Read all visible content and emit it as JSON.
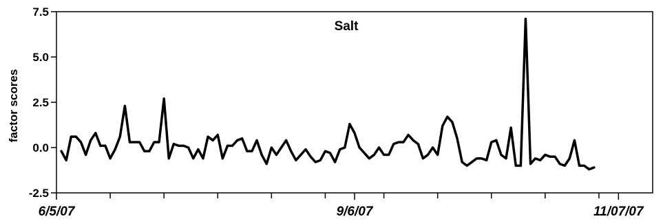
{
  "chart_data": {
    "type": "line",
    "title": "Salt",
    "ylabel": "factor scores",
    "xlabel": "",
    "ylim": [
      -2.5,
      7.5
    ],
    "yticks": [
      {
        "value": 7.5,
        "label": "7.5"
      },
      {
        "value": 5.0,
        "label": "5.0"
      },
      {
        "value": 2.5,
        "label": "2.5"
      },
      {
        "value": 0.0,
        "label": "0.0"
      },
      {
        "value": -2.5,
        "label": "-2.5"
      }
    ],
    "xlim": [
      0,
      122
    ],
    "xticks": [
      {
        "value": 0,
        "label": "6/5/07"
      },
      {
        "value": 61,
        "label": "9/6/07"
      },
      {
        "value": 115,
        "label": "11/07/07"
      }
    ],
    "x_minor_ticks": [
      11,
      22,
      33,
      44,
      55,
      67,
      78,
      89,
      100,
      111
    ],
    "grid": false,
    "line_color": "#000000",
    "series": [
      {
        "values": [
          -0.2,
          -0.7,
          0.6,
          0.6,
          0.3,
          -0.4,
          0.4,
          0.8,
          0.1,
          0.1,
          -0.6,
          -0.1,
          0.6,
          2.3,
          0.3,
          0.3,
          0.3,
          -0.2,
          -0.2,
          0.3,
          0.3,
          2.7,
          -0.6,
          0.2,
          0.1,
          0.1,
          0.0,
          -0.6,
          -0.1,
          -0.6,
          0.6,
          0.4,
          0.7,
          -0.6,
          0.1,
          0.1,
          0.4,
          0.5,
          -0.2,
          -0.2,
          0.4,
          -0.4,
          -0.9,
          0.0,
          -0.4,
          0.0,
          0.4,
          -0.2,
          -0.7,
          -0.4,
          -0.1,
          -0.5,
          -0.8,
          -0.7,
          -0.2,
          -0.3,
          -0.8,
          -0.1,
          0.0,
          1.3,
          0.8,
          0.0,
          -0.3,
          -0.6,
          -0.4,
          0.0,
          -0.4,
          -0.4,
          0.2,
          0.3,
          0.3,
          0.7,
          0.4,
          0.2,
          -0.6,
          -0.4,
          0.0,
          -0.4,
          1.2,
          1.7,
          1.4,
          0.5,
          -0.8,
          -1.0,
          -0.8,
          -0.6,
          -0.6,
          -0.7,
          0.3,
          0.4,
          -0.4,
          -0.6,
          1.1,
          -1.0,
          -1.0,
          7.1,
          -0.9,
          -0.6,
          -0.7,
          -0.4,
          -0.5,
          -0.5,
          -0.9,
          -1.0,
          -0.6,
          0.4,
          -1.0,
          -1.0,
          -1.2,
          -1.1
        ]
      }
    ]
  }
}
